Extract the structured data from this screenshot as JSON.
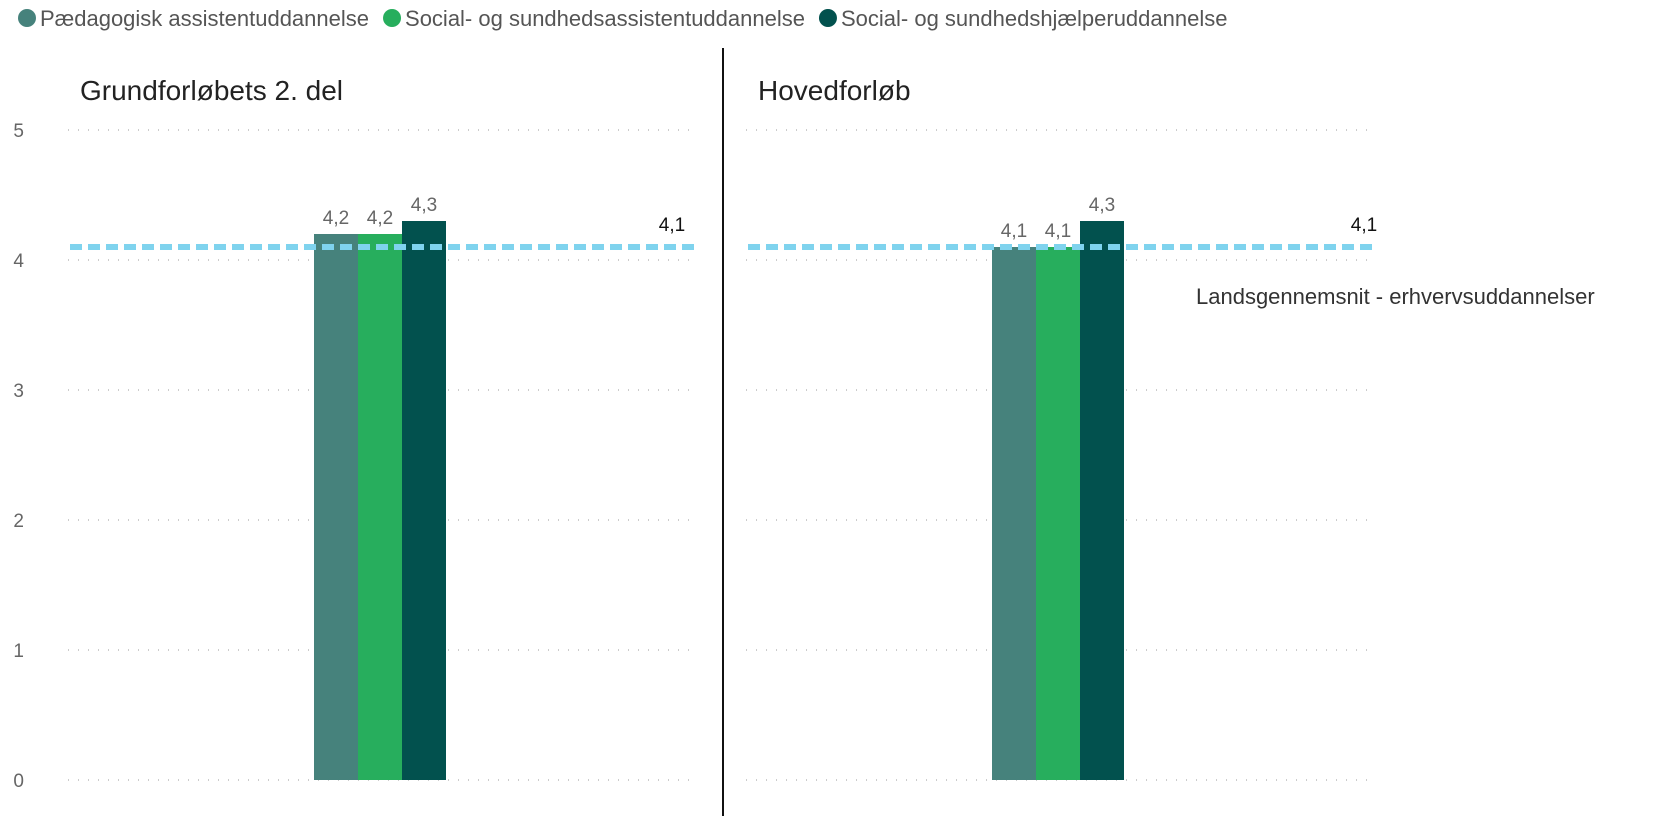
{
  "chart_data": {
    "type": "bar",
    "legend": [
      {
        "name": "Pædagogisk assistentuddannelse",
        "color": "#46827C"
      },
      {
        "name": "Social- og sundhedsassistentuddannelse",
        "color": "#27AE5D"
      },
      {
        "name": "Social- og sundhedshjælperuddannelse",
        "color": "#02514E"
      }
    ],
    "legend_position": "top-left",
    "ylim": [
      0,
      5
    ],
    "yticks": [
      "0",
      "1",
      "2",
      "3",
      "4",
      "5"
    ],
    "grid": "dotted-horizontal",
    "panels": [
      {
        "title": "Grundforløbets 2. del",
        "values": [
          4.2,
          4.2,
          4.3
        ],
        "value_labels": [
          "4,2",
          "4,2",
          "4,3"
        ],
        "reference": {
          "value": 4.1,
          "label": "4,1"
        }
      },
      {
        "title": "Hovedforløb",
        "values": [
          4.1,
          4.1,
          4.3
        ],
        "value_labels": [
          "4,1",
          "4,1",
          "4,3"
        ],
        "reference": {
          "value": 4.1,
          "label": "4,1"
        }
      }
    ],
    "reference_line": {
      "name": "Landsgennemsnit - erhvervsuddannelser",
      "color": "#7FD3EE",
      "style": "dashed"
    }
  }
}
